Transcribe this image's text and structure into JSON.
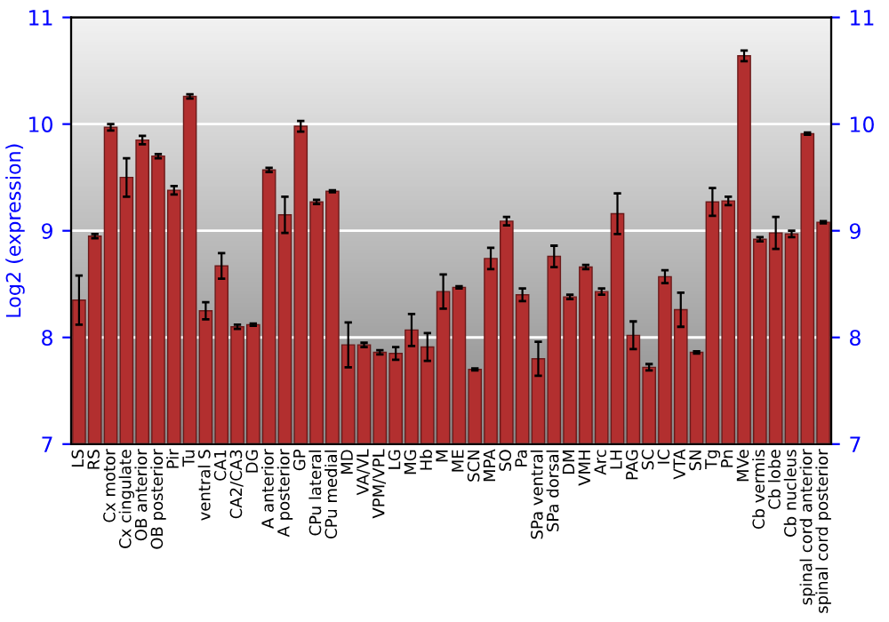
{
  "chart_data": {
    "type": "bar",
    "ylabel": "Log2 (expression)",
    "categories": [
      "LS",
      "RS",
      "Cx motor",
      "Cx cingulate",
      "OB anterior",
      "OB posterior",
      "Pir",
      "Tu",
      "ventral S",
      "CA1",
      "CA2/CA3",
      "DG",
      "A anterior",
      "A posterior",
      "GP",
      "CPu lateral",
      "CPu medial",
      "MD",
      "VA/VL",
      "VPM/VPL",
      "LG",
      "MG",
      "Hb",
      "M",
      "ME",
      "SCN",
      "MPA",
      "SO",
      "Pa",
      "SPa ventral",
      "SPa dorsal",
      "DM",
      "VMH",
      "Arc",
      "LH",
      "PAG",
      "SC",
      "IC",
      "VTA",
      "SN",
      "Tg",
      "Pn",
      "MVe",
      "Cb vermis",
      "Cb lobe",
      "Cb nucleus",
      "spinal cord anterior",
      "spinal cord posterior"
    ],
    "values": [
      8.35,
      8.95,
      9.97,
      9.5,
      9.85,
      9.7,
      9.38,
      10.26,
      8.25,
      8.67,
      8.1,
      8.12,
      9.57,
      9.15,
      9.98,
      9.27,
      9.37,
      7.93,
      7.93,
      7.86,
      7.85,
      8.07,
      7.91,
      8.43,
      8.47,
      7.7,
      8.74,
      9.09,
      8.4,
      7.8,
      8.76,
      8.38,
      8.66,
      8.43,
      9.16,
      8.02,
      7.72,
      8.57,
      8.26,
      7.86,
      9.27,
      9.28,
      10.64,
      8.92,
      8.98,
      8.97,
      9.91,
      9.08
    ],
    "errors": [
      0.23,
      0.02,
      0.03,
      0.18,
      0.04,
      0.02,
      0.04,
      0.02,
      0.08,
      0.12,
      0.02,
      0.01,
      0.02,
      0.17,
      0.05,
      0.02,
      0.01,
      0.21,
      0.02,
      0.02,
      0.06,
      0.15,
      0.13,
      0.16,
      0.01,
      0.01,
      0.1,
      0.04,
      0.06,
      0.16,
      0.1,
      0.02,
      0.02,
      0.03,
      0.19,
      0.13,
      0.03,
      0.06,
      0.16,
      0.01,
      0.13,
      0.04,
      0.05,
      0.02,
      0.15,
      0.03,
      0.01,
      0.01
    ],
    "color": "#b22f2f",
    "ylim": [
      7,
      11
    ],
    "yticks": [
      7,
      8,
      9,
      10,
      11
    ],
    "y2lim": [
      7,
      11
    ],
    "y2ticks": [
      7,
      8,
      9,
      10,
      11
    ],
    "grid": "y",
    "legend": false
  }
}
